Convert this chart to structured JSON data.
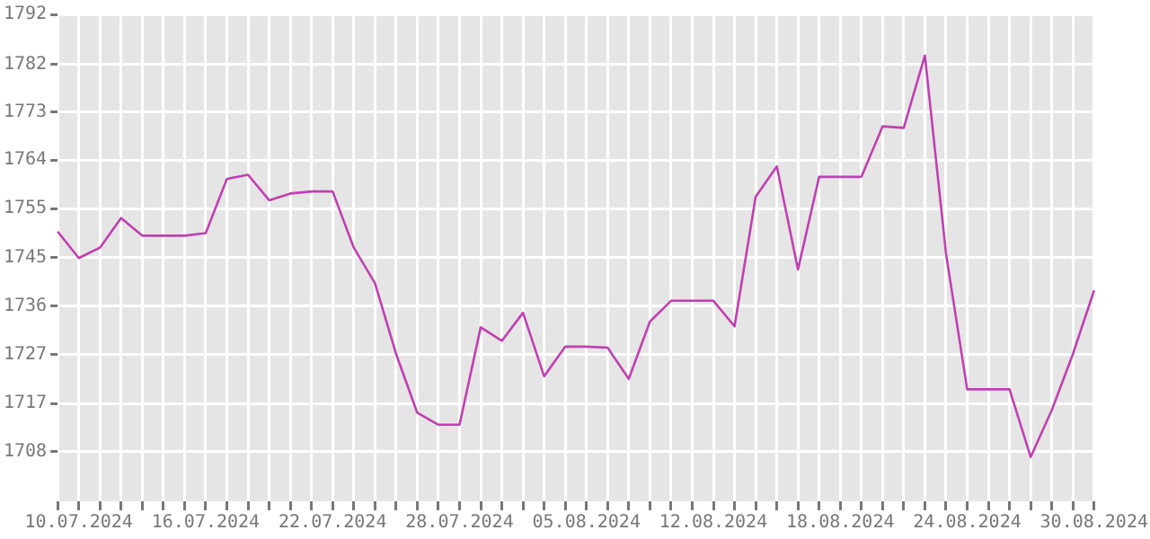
{
  "chart_data": {
    "type": "line",
    "categories": [
      null,
      "10.07.2024",
      null,
      null,
      null,
      null,
      null,
      "16.07.2024",
      null,
      null,
      null,
      null,
      null,
      "22.07.2024",
      null,
      null,
      null,
      null,
      null,
      "28.07.2024",
      null,
      null,
      null,
      null,
      null,
      "05.08.2024",
      null,
      null,
      null,
      null,
      null,
      "12.08.2024",
      null,
      null,
      null,
      null,
      null,
      "18.08.2024",
      null,
      null,
      null,
      null,
      null,
      "24.08.2024",
      null,
      null,
      null,
      null,
      null,
      "30.08.2024"
    ],
    "series": [
      {
        "color": "#c040b0",
        "values": [
          1750.3,
          1745.2,
          1747.2,
          1752.9,
          1749.5,
          1749.5,
          1749.5,
          1750,
          1760.4,
          1761.2,
          1756.3,
          1757.6,
          1758,
          1758,
          1747.2,
          1740.4,
          1726.8,
          1715.5,
          1713.2,
          1713.2,
          1731.9,
          1729.3,
          1734.7,
          1722.5,
          1728.2,
          1728.2,
          1728,
          1722,
          1733,
          1737,
          1737,
          1737,
          1732.1,
          1757,
          1762.8,
          1743,
          1760.8,
          1760.8,
          1760.8,
          1770.5,
          1770.2,
          1784.1,
          1746,
          1720,
          1720,
          1720,
          1707,
          1716,
          1726.8,
          1739
        ]
      }
    ],
    "ylim": [
      1698.5,
      1792
    ],
    "yticks": [
      {
        "value": 1708,
        "label": "1708"
      },
      {
        "value": 1717.3,
        "label": "1717"
      },
      {
        "value": 1726.7,
        "label": "1727"
      },
      1736,
      {
        "value": 1745.3,
        "label": "1745"
      },
      {
        "value": 1754.7,
        "label": "1755"
      },
      1764,
      {
        "value": 1773.3,
        "label": "1773"
      },
      {
        "value": 1782.4,
        "label": "1782"
      },
      1792
    ],
    "grid": true,
    "legend": false,
    "marker": "none",
    "line_style": "solid"
  }
}
